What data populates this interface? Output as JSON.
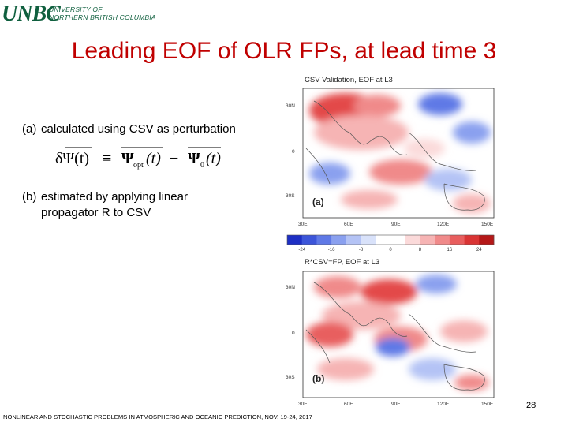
{
  "logo": {
    "mark": "UNBC",
    "line1": "UNIVERSITY OF",
    "line2": "NORTHERN BRITISH COLUMBIA",
    "color": "#0f5f3e"
  },
  "title": "Leading EOF of OLR FPs, at lead time 3",
  "items": [
    {
      "label": "(a)",
      "text": "calculated using CSV as perturbation"
    },
    {
      "label": "(b)",
      "line1": "estimated by applying linear",
      "line2": "propagator R to CSV"
    }
  ],
  "equation": {
    "lhs": "δΨ(t)",
    "equiv": "≡",
    "term1": "Ψ",
    "term1_sub": "opt",
    "term1_arg": "(t)",
    "minus": "−",
    "term2": "Ψ",
    "term2_sub": "0",
    "term2_arg": "(t)"
  },
  "maps": {
    "panel_a": {
      "title": "CSV Validation, EOF at L3",
      "label": "(a)"
    },
    "panel_b": {
      "title": "R*CSV=FP, EOF at L3",
      "label": "(b)"
    },
    "lat_labels": [
      "30N",
      "0",
      "30S"
    ],
    "lon_labels": [
      "30E",
      "60E",
      "90E",
      "120E",
      "150E"
    ],
    "colorbar_ticks": [
      "-24",
      "-16",
      "-8",
      "0",
      "8",
      "16",
      "24"
    ],
    "colorbar_colors": [
      "#1d2fc4",
      "#3c55d9",
      "#5f79e6",
      "#8aa0ef",
      "#b4c3f5",
      "#d9e2fa",
      "#ffffff",
      "#ffffff",
      "#fbdada",
      "#f6b4b4",
      "#f08a8a",
      "#e85e5e",
      "#d93434",
      "#b51818"
    ]
  },
  "page_number": "28",
  "footer": "NONLINEAR AND STOCHASTIC PROBLEMS IN ATMOSPHERIC AND OCEANIC PREDICTION, NOV. 19-24, 2017"
}
